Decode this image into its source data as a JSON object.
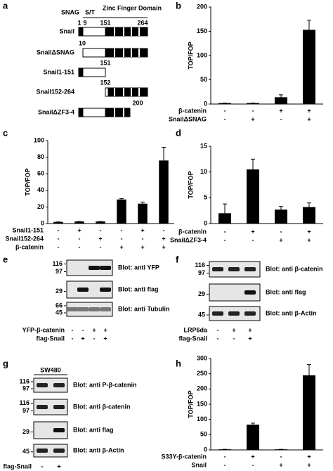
{
  "panel_a": {
    "panel_label": "a",
    "domains": [
      "SNAG",
      "S/T",
      "Zinc Finger Domain"
    ],
    "header_numbers": [
      1,
      9,
      151,
      264
    ],
    "constructs": [
      {
        "name": "Snail"
      },
      {
        "name": "SnailΔSNAG",
        "position": 10
      },
      {
        "name": "Snail1-151",
        "position": 151
      },
      {
        "name": "Snail152-264",
        "position": 152
      },
      {
        "name": "SnailΔZF3-4",
        "position": 200
      }
    ]
  },
  "chart_data": [
    {
      "type": "bar",
      "panel_label": "b",
      "y_label": "TOP/FOP",
      "color": "#000000",
      "values": [
        2,
        2,
        14,
        153
      ],
      "errors": [
        0,
        0,
        5,
        20
      ],
      "ylim": [
        0,
        200
      ],
      "yticks": [
        0,
        50,
        100,
        150,
        200
      ],
      "conditions": [
        {
          "name": "β-catenin",
          "signs": [
            "-",
            "-",
            "+",
            "+"
          ]
        },
        {
          "name": "SnailΔSNAG",
          "signs": [
            "-",
            "+",
            "-",
            "+"
          ]
        }
      ]
    },
    {
      "type": "bar",
      "panel_label": "c",
      "y_label": "TOP/FOP",
      "color": "#000000",
      "values": [
        2,
        2.5,
        2.5,
        29,
        24,
        76
      ],
      "errors": [
        0,
        0,
        0,
        1,
        2,
        16
      ],
      "ylim": [
        0,
        100
      ],
      "yticks": [
        0,
        20,
        40,
        60,
        80,
        100
      ],
      "conditions": [
        {
          "name": "Snail1-151",
          "signs": [
            "-",
            "+",
            "-",
            "-",
            "+",
            "-"
          ]
        },
        {
          "name": "Snail152-264",
          "signs": [
            "-",
            "-",
            "+",
            "-",
            "-",
            "+"
          ]
        },
        {
          "name": "β-catenin",
          "signs": [
            "-",
            "-",
            "-",
            "+",
            "+",
            "+"
          ]
        }
      ]
    },
    {
      "type": "bar",
      "panel_label": "d",
      "y_label": "TOP/FOP",
      "color": "#000000",
      "values": [
        2,
        10.5,
        2.7,
        3.2
      ],
      "errors": [
        1.8,
        2,
        0.6,
        0.8
      ],
      "ylim": [
        0,
        15
      ],
      "yticks": [
        0,
        5,
        10,
        15
      ],
      "conditions": [
        {
          "name": "β-catenin",
          "signs": [
            "-",
            "+",
            "-",
            "+"
          ]
        },
        {
          "name": "SnailΔZF3-4",
          "signs": [
            "-",
            "-",
            "+",
            "+"
          ]
        }
      ]
    },
    {
      "type": "bar",
      "panel_label": "h",
      "y_label": "TOP/FOP",
      "color": "#000000",
      "values": [
        2,
        83,
        2,
        245
      ],
      "errors": [
        0,
        5,
        0,
        35
      ],
      "ylim": [
        0,
        300
      ],
      "yticks": [
        0,
        50,
        100,
        150,
        200,
        250,
        300
      ],
      "conditions": [
        {
          "name": "S33Y-β-catenin",
          "signs": [
            "-",
            "+",
            "-",
            "+"
          ]
        },
        {
          "name": "Snail",
          "signs": [
            "-",
            "-",
            "+",
            "+"
          ]
        }
      ]
    }
  ],
  "blots": [
    {
      "panel_label": "e",
      "strips": [
        {
          "markers": [
            116,
            97
          ],
          "label": "Blot: anti YFP"
        },
        {
          "markers": [
            29
          ],
          "label": "Blot: anti flag"
        },
        {
          "markers": [
            66,
            45
          ],
          "label": "Blot: anti Tubulin"
        }
      ],
      "conditions": [
        {
          "name": "YFP-β-catenin",
          "signs": [
            "-",
            "-",
            "+",
            "+"
          ]
        },
        {
          "name": "flag-Snail",
          "signs": [
            "-",
            "+",
            "-",
            "+"
          ]
        }
      ]
    },
    {
      "panel_label": "f",
      "strips": [
        {
          "markers": [
            116,
            97
          ],
          "label": "Blot: anti β-catenin"
        },
        {
          "markers": [
            29
          ],
          "label": "Blot: anti flag"
        },
        {
          "markers": [
            45
          ],
          "label": "Blot: anti β-Actin"
        }
      ],
      "conditions": [
        {
          "name": "LRP6da",
          "signs": [
            "-",
            "+",
            "+"
          ]
        },
        {
          "name": "flag-Snail",
          "signs": [
            "-",
            "-",
            "+"
          ]
        }
      ]
    },
    {
      "panel_label": "g",
      "cell_line": "SW480",
      "strips": [
        {
          "markers": [
            116,
            97
          ],
          "label": "Blot: anti P-β-catenin"
        },
        {
          "markers": [
            116,
            97
          ],
          "label": "Blot: anti β-catenin"
        },
        {
          "markers": [
            29
          ],
          "label": "Blot: anti flag"
        },
        {
          "markers": [
            45
          ],
          "label": "Blot: anti β-Actin"
        }
      ],
      "conditions": [
        {
          "name": "flag-Snail",
          "signs": [
            "-",
            "+"
          ]
        }
      ]
    }
  ]
}
